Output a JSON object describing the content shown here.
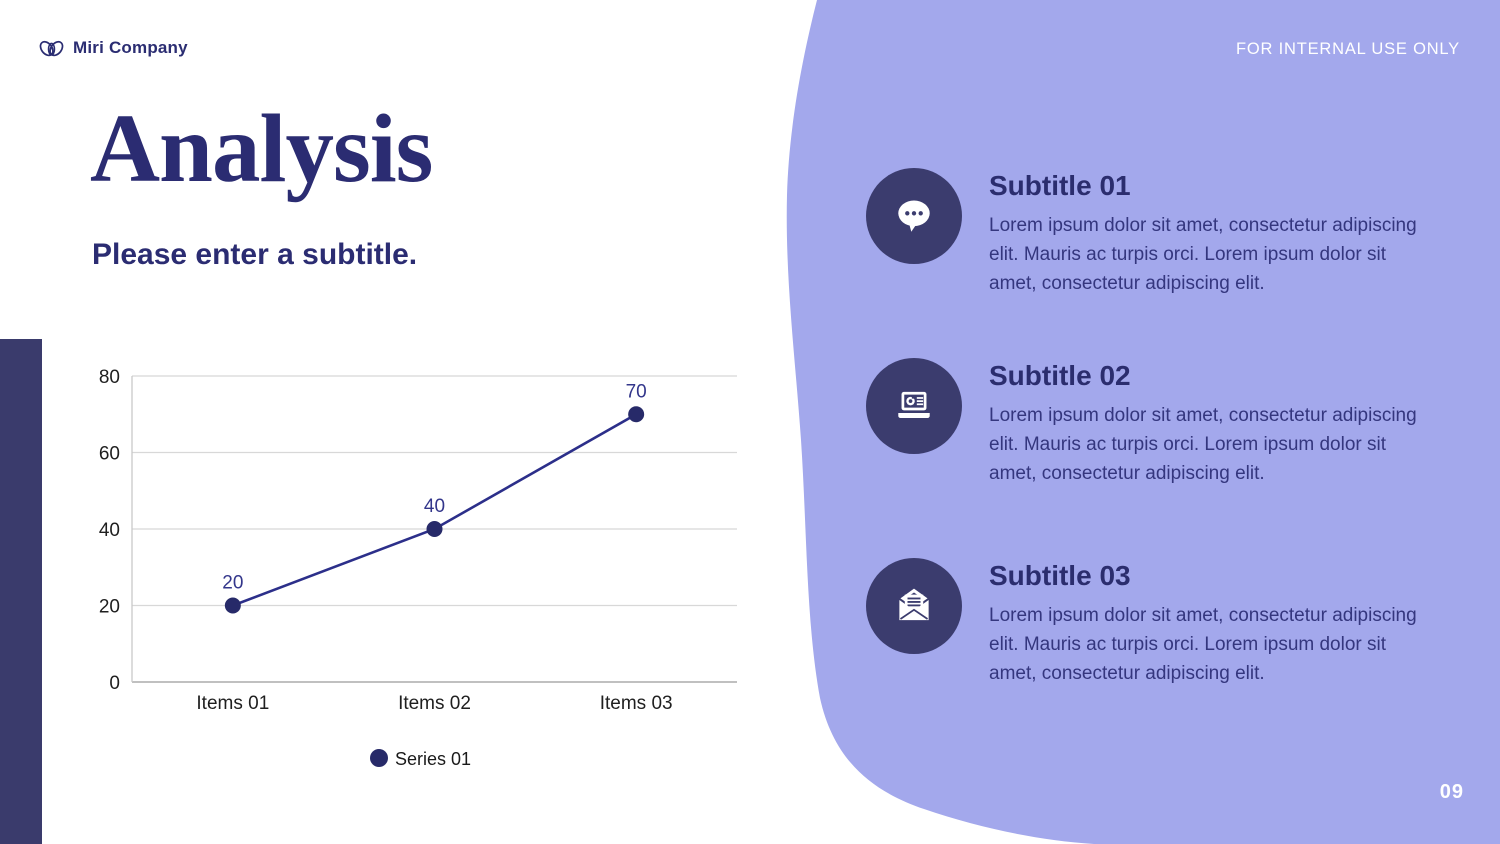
{
  "page": {
    "brand": "Miri Company",
    "classification": "FOR INTERNAL USE ONLY",
    "title": "Analysis",
    "subtitle": "Please enter a subtitle.",
    "page_number": "09"
  },
  "colors": {
    "blob_purple": "#a3a8ec",
    "navy_dark": "#3b3c6e",
    "title_navy": "#2b2c72",
    "chart_line": "#2c2f8a",
    "chart_marker": "#272a69",
    "chart_value_label": "#33368b",
    "chart_grid": "#d8d8d8",
    "chart_axis": "#9a9a9a",
    "chart_tick_text": "#1f1f1f",
    "legend_text": "#1a1a1a"
  },
  "chart_data": {
    "type": "line",
    "categories": [
      "Items 01",
      "Items 02",
      "Items 03"
    ],
    "series": [
      {
        "name": "Series 01",
        "values": [
          20,
          40,
          70
        ]
      }
    ],
    "title": "",
    "xlabel": "",
    "ylabel": "",
    "ylim": [
      0,
      80
    ],
    "yticks": [
      0,
      20,
      40,
      60,
      80
    ],
    "grid": true,
    "legend_position": "bottom",
    "markers": true,
    "data_labels": [
      20,
      40,
      70
    ]
  },
  "sections": [
    {
      "icon": "chat-bubble-icon",
      "title": "Subtitle 01",
      "body": "Lorem ipsum dolor sit amet, consectetur adipiscing elit. Mauris ac turpis orci. Lorem ipsum dolor sit amet, consectetur adipiscing elit."
    },
    {
      "icon": "laptop-presentation-icon",
      "title": "Subtitle 02",
      "body": "Lorem ipsum dolor sit amet, consectetur adipiscing elit. Mauris ac turpis orci. Lorem ipsum dolor sit amet, consectetur adipiscing elit."
    },
    {
      "icon": "open-envelope-icon",
      "title": "Subtitle 03",
      "body": "Lorem ipsum dolor sit amet, consectetur adipiscing elit. Mauris ac turpis orci. Lorem ipsum dolor sit amet, consectetur adipiscing elit."
    }
  ]
}
